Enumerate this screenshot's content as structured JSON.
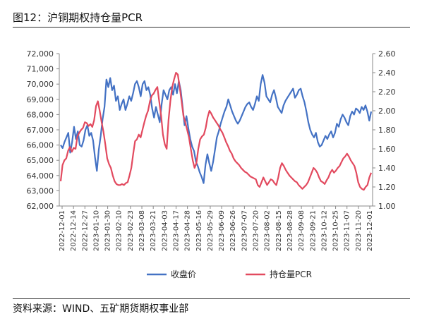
{
  "header": {
    "title": "图12：沪铜期权持仓量PCR"
  },
  "footer": {
    "source": "资料来源：WIND、五矿期货期权事业部"
  },
  "chart_data": {
    "type": "line",
    "title": "图12：沪铜期权持仓量PCR",
    "y_left": {
      "min": 62000,
      "max": 72000,
      "ticks": [
        "62,000",
        "63,000",
        "64,000",
        "65,000",
        "66,000",
        "67,000",
        "68,000",
        "69,000",
        "70,000",
        "71,000",
        "72,000"
      ]
    },
    "y_right": {
      "min": 1.0,
      "max": 2.6,
      "ticks": [
        "1.00",
        "1.20",
        "1.40",
        "1.60",
        "1.80",
        "2.00",
        "2.20",
        "2.40",
        "2.60"
      ]
    },
    "x_tick_labels": [
      "2022-12-01",
      "2022-12-14",
      "2022-12-27",
      "2023-01-10",
      "2023-01-30",
      "2023-02-10",
      "2023-02-23",
      "2023-03-08",
      "2023-03-21",
      "2023-04-03",
      "2023-04-17",
      "2023-04-28",
      "2023-05-16",
      "2023-05-29",
      "2023-06-09",
      "2023-06-26",
      "2023-07-07",
      "2023-07-20",
      "2023-08-02",
      "2023-08-15",
      "2023-08-28",
      "2023-09-08",
      "2023-09-21",
      "2023-10-12",
      "2023-10-25",
      "2023-11-07",
      "2023-11-20",
      "2023-12-01"
    ],
    "grid": false,
    "legend_position": "bottom",
    "series": [
      {
        "name": "收盘价",
        "axis": "left",
        "color": "#4472C4",
        "values": [
          66000,
          65800,
          66200,
          66500,
          66800,
          65500,
          66200,
          67200,
          66400,
          66900,
          66000,
          65900,
          66300,
          67000,
          67300,
          66600,
          66800,
          66300,
          65200,
          64300,
          65700,
          66600,
          67700,
          68500,
          70300,
          69800,
          70400,
          69600,
          69900,
          68900,
          69200,
          68300,
          68700,
          69000,
          68300,
          68700,
          69200,
          68900,
          69400,
          70000,
          70200,
          69800,
          69200,
          70000,
          70200,
          69600,
          69800,
          69300,
          68400,
          67800,
          68500,
          68000,
          67500,
          68700,
          69600,
          69300,
          69000,
          69600,
          69800,
          69300,
          70000,
          69400,
          70200,
          69600,
          68500,
          67300,
          67900,
          67100,
          66400,
          65900,
          65600,
          64900,
          64600,
          64200,
          63900,
          63500,
          64700,
          65400,
          64800,
          64300,
          64900,
          65700,
          66500,
          66900,
          67400,
          67800,
          68200,
          68500,
          69000,
          68600,
          68200,
          67900,
          67600,
          67400,
          67600,
          67900,
          68200,
          68500,
          68700,
          68800,
          68500,
          68300,
          68700,
          69200,
          68900,
          70000,
          70600,
          70100,
          69200,
          69000,
          68800,
          69300,
          69600,
          69100,
          68500,
          68300,
          68100,
          68600,
          68900,
          69100,
          69300,
          69500,
          69700,
          69100,
          69300,
          69600,
          69700,
          69200,
          68800,
          68200,
          67500,
          67000,
          66700,
          66500,
          66800,
          66200,
          65900,
          66000,
          66300,
          66600,
          66400,
          66700,
          66900,
          66500,
          66800,
          67400,
          67200,
          67700,
          68000,
          67800,
          67500,
          67300,
          67900,
          68200,
          68000,
          68400,
          68300,
          68100,
          68500,
          68300,
          68600,
          68200,
          67600,
          68200
        ]
      },
      {
        "name": "持仓量PCR",
        "axis": "right",
        "color": "#E24A5F",
        "values": [
          1.26,
          1.43,
          1.48,
          1.5,
          1.58,
          1.62,
          1.57,
          1.61,
          1.6,
          1.73,
          1.77,
          1.8,
          1.82,
          1.88,
          1.87,
          1.84,
          1.86,
          1.83,
          1.9,
          2.05,
          2.1,
          2.0,
          1.88,
          1.78,
          1.65,
          1.5,
          1.44,
          1.4,
          1.32,
          1.26,
          1.23,
          1.22,
          1.22,
          1.23,
          1.22,
          1.24,
          1.25,
          1.32,
          1.4,
          1.55,
          1.68,
          1.7,
          1.75,
          1.72,
          1.8,
          1.88,
          1.95,
          2.0,
          2.1,
          2.16,
          2.18,
          2.22,
          2.25,
          2.1,
          1.95,
          1.75,
          1.65,
          1.6,
          1.9,
          2.1,
          2.25,
          2.33,
          2.4,
          2.38,
          2.25,
          2.1,
          1.95,
          1.88,
          1.8,
          1.72,
          1.6,
          1.48,
          1.4,
          1.45,
          1.6,
          1.7,
          1.73,
          1.75,
          1.82,
          1.93,
          2.0,
          1.97,
          1.93,
          1.9,
          1.87,
          1.84,
          1.8,
          1.77,
          1.72,
          1.67,
          1.63,
          1.58,
          1.55,
          1.5,
          1.47,
          1.45,
          1.43,
          1.4,
          1.38,
          1.36,
          1.35,
          1.33,
          1.31,
          1.3,
          1.29,
          1.28,
          1.22,
          1.2,
          1.25,
          1.3,
          1.26,
          1.22,
          1.25,
          1.28,
          1.27,
          1.24,
          1.22,
          1.3,
          1.4,
          1.45,
          1.42,
          1.38,
          1.35,
          1.32,
          1.3,
          1.28,
          1.26,
          1.25,
          1.22,
          1.2,
          1.18,
          1.2,
          1.22,
          1.25,
          1.3,
          1.35,
          1.4,
          1.38,
          1.35,
          1.3,
          1.26,
          1.25,
          1.23,
          1.27,
          1.3,
          1.35,
          1.38,
          1.35,
          1.37,
          1.4,
          1.42,
          1.46,
          1.5,
          1.52,
          1.55,
          1.52,
          1.48,
          1.45,
          1.42,
          1.35,
          1.25,
          1.2,
          1.18,
          1.17,
          1.2,
          1.22,
          1.3,
          1.35
        ]
      }
    ]
  }
}
